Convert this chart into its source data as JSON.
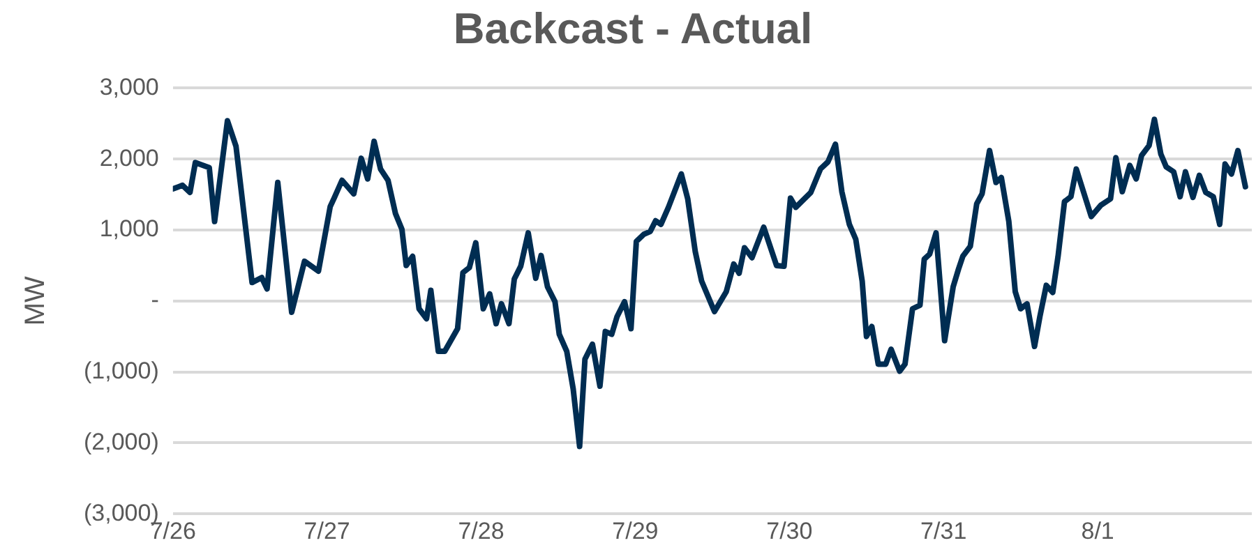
{
  "chart_data": {
    "type": "line",
    "title": "Backcast - Actual",
    "ylabel": "MW",
    "x": [
      "--07-26T00:00",
      "--07-26T01:30",
      "--07-26T02:40",
      "--07-26T03:30",
      "--07-26T05:40",
      "--07-26T06:30",
      "--07-26T08:30",
      "--07-26T09:50",
      "--07-26T12:20",
      "--07-26T13:50",
      "--07-26T14:40",
      "--07-26T16:20",
      "--07-26T18:30",
      "--07-26T20:30",
      "--07-26T22:40",
      "--07-27T00:30",
      "--07-27T01:10",
      "--07-27T02:20",
      "--07-27T04:10",
      "--07-27T05:20",
      "--07-27T06:20",
      "--07-27T07:20",
      "--07-27T08:20",
      "--07-27T09:30",
      "--07-27T10:40",
      "--07-27T11:40",
      "--07-27T12:20",
      "--07-27T13:20",
      "--07-27T14:20",
      "--07-27T15:30",
      "--07-27T16:10",
      "--07-27T17:20",
      "--07-27T18:20",
      "--07-27T20:20",
      "--07-27T21:10",
      "--07-27T22:10",
      "--07-27T23:10",
      "--07-28T00:20",
      "--07-28T01:20",
      "--07-28T02:20",
      "--07-28T03:10",
      "--07-28T04:20",
      "--07-28T05:10",
      "--07-28T06:10",
      "--07-28T07:20",
      "--07-28T08:30",
      "--07-28T09:20",
      "--07-28T10:20",
      "--07-28T11:30",
      "--07-28T12:10",
      "--07-28T13:20",
      "--07-28T14:20",
      "--07-28T15:20",
      "--07-28T16:10",
      "--07-28T17:20",
      "--07-28T18:30",
      "--07-28T19:20",
      "--07-28T20:20",
      "--07-28T21:10",
      "--07-28T22:20",
      "--07-28T23:20",
      "--07-29T00:10",
      "--07-29T01:20",
      "--07-29T02:20",
      "--07-29T03:10",
      "--07-29T04:00",
      "--07-29T05:10",
      "--07-29T07:10",
      "--07-29T08:10",
      "--07-29T09:20",
      "--07-29T10:20",
      "--07-29T12:20",
      "--07-29T14:10",
      "--07-29T15:20",
      "--07-29T16:10",
      "--07-29T17:00",
      "--07-29T18:10",
      "--07-29T20:00",
      "--07-29T21:00",
      "--07-29T22:00",
      "--07-29T23:10",
      "--07-30T00:10",
      "--07-30T01:00",
      "--07-30T03:20",
      "--07-30T04:50",
      "--07-30T06:00",
      "--07-30T07:10",
      "--07-30T08:10",
      "--07-30T09:20",
      "--07-30T10:20",
      "--07-30T11:20",
      "--07-30T12:00",
      "--07-30T12:50",
      "--07-30T13:50",
      "--07-30T15:00",
      "--07-30T15:50",
      "--07-30T17:10",
      "--07-30T18:00",
      "--07-30T19:10",
      "--07-30T20:20",
      "--07-30T21:00",
      "--07-30T21:50",
      "--07-30T22:50",
      "--07-31T00:10",
      "--07-31T01:30",
      "--07-31T02:20",
      "--07-31T03:00",
      "--07-31T04:10",
      "--07-31T05:10",
      "--07-31T06:00",
      "--07-31T07:10",
      "--07-31T08:10",
      "--07-31T09:00",
      "--07-31T10:10",
      "--07-31T11:10",
      "--07-31T12:00",
      "--07-31T13:00",
      "--07-31T14:10",
      "--07-31T15:00",
      "--07-31T16:00",
      "--07-31T17:00",
      "--07-31T17:50",
      "--07-31T18:50",
      "--07-31T19:50",
      "--07-31T20:40",
      "--07-31T23:00",
      "--08-01T00:30",
      "--08-01T02:00",
      "--08-01T02:50",
      "--08-01T03:50",
      "--08-01T05:00",
      "--08-01T06:00",
      "--08-01T06:50",
      "--08-01T08:00",
      "--08-01T08:50",
      "--08-01T09:50",
      "--08-01T10:40",
      "--08-01T11:50",
      "--08-01T12:50",
      "--08-01T13:40",
      "--08-01T14:50",
      "--08-01T15:50",
      "--08-01T16:50",
      "--08-01T18:00",
      "--08-01T19:00",
      "--08-01T19:50",
      "--08-01T20:50",
      "--08-01T21:50",
      "--08-01T23:00"
    ],
    "series": [
      {
        "color": "#002d52",
        "values": [
          1580,
          1630,
          1530,
          1950,
          1880,
          1120,
          2540,
          2180,
          260,
          330,
          170,
          1670,
          -160,
          560,
          420,
          1330,
          1460,
          1700,
          1510,
          2010,
          1720,
          2250,
          1860,
          1700,
          1230,
          1010,
          500,
          630,
          -110,
          -250,
          150,
          -710,
          -710,
          -390,
          400,
          470,
          820,
          -110,
          100,
          -320,
          -40,
          -320,
          310,
          490,
          960,
          320,
          640,
          200,
          -10,
          -470,
          -710,
          -1240,
          -2050,
          -820,
          -610,
          -1200,
          -430,
          -470,
          -220,
          -10,
          -390,
          840,
          940,
          980,
          1130,
          1080,
          1320,
          1790,
          1440,
          700,
          280,
          -150,
          130,
          520,
          390,
          750,
          610,
          1040,
          770,
          500,
          490,
          1450,
          1320,
          1530,
          1860,
          1960,
          2210,
          1540,
          1080,
          870,
          280,
          -500,
          -360,
          -890,
          -890,
          -680,
          -990,
          -890,
          -110,
          -60,
          590,
          660,
          960,
          -560,
          200,
          450,
          630,
          770,
          1370,
          1510,
          2120,
          1670,
          1740,
          1120,
          130,
          -110,
          -40,
          -640,
          -220,
          220,
          120,
          630,
          1400,
          1470,
          1860,
          1190,
          1350,
          1440,
          2020,
          1540,
          1910,
          1720,
          2050,
          2190,
          2560,
          2070,
          1890,
          1820,
          1470,
          1820,
          1460,
          1770,
          1530,
          1470,
          1080,
          1930,
          1790,
          2120,
          1610
        ]
      }
    ],
    "xlim": [
      "--07-26",
      "--08-02"
    ],
    "xticks": [
      {
        "value": "--07-26",
        "label": "7/26"
      },
      {
        "value": "--07-27",
        "label": "7/27"
      },
      {
        "value": "--07-28",
        "label": "7/28"
      },
      {
        "value": "--07-29",
        "label": "7/29"
      },
      {
        "value": "--07-30",
        "label": "7/30"
      },
      {
        "value": "--07-31",
        "label": "7/31"
      },
      {
        "value": "--08-01",
        "label": "8/1"
      }
    ],
    "ylim": [
      -3000,
      3000
    ],
    "yticks": [
      {
        "value": -3000,
        "label": "(3,000)"
      },
      {
        "value": -2000,
        "label": "(2,000)"
      },
      {
        "value": -1000,
        "label": "(1,000)"
      },
      {
        "value": 0,
        "label": "-"
      },
      {
        "value": 1000,
        "label": "1,000"
      },
      {
        "value": 2000,
        "label": "2,000"
      },
      {
        "value": 3000,
        "label": "3,000"
      }
    ],
    "grid": "y",
    "legend": false,
    "marker": "none",
    "line_style": "solid"
  }
}
